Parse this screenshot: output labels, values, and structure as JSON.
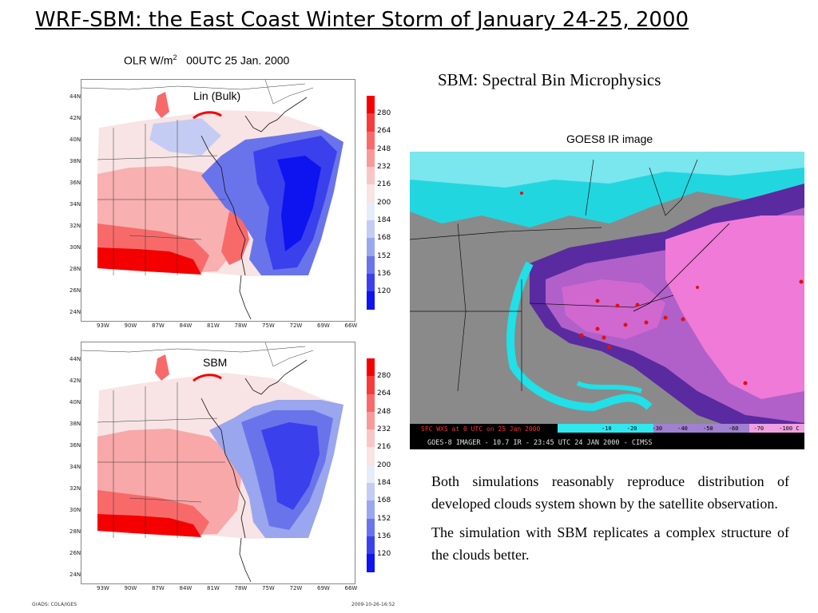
{
  "slide_title": "WRF-SBM: the East Coast Winter Storm of January 24-25, 2000",
  "olr_caption": {
    "prefix": "OLR W/m",
    "sup": "2",
    "time": "00UTC 25 Jan. 2000"
  },
  "panels": [
    {
      "label": "Lin (Bulk)"
    },
    {
      "label": "SBM"
    }
  ],
  "colorbar": {
    "ticks": [
      "280",
      "264",
      "248",
      "232",
      "216",
      "200",
      "184",
      "168",
      "152",
      "136",
      "120"
    ],
    "colors": [
      "#f40000",
      "#f83a3a",
      "#f86a6a",
      "#f89a9a",
      "#f8c6c6",
      "#f8e4e4",
      "#e6ecfa",
      "#c4ccf4",
      "#9aa6ee",
      "#6a74ea",
      "#3a40ec",
      "#0d14f0"
    ]
  },
  "map_axes": {
    "lat_labels": [
      "44N",
      "42N",
      "40N",
      "38N",
      "36N",
      "34N",
      "32N",
      "30N",
      "28N",
      "26N",
      "24N"
    ],
    "lon_labels": [
      "93W",
      "90W",
      "87W",
      "84W",
      "81W",
      "78W",
      "75W",
      "72W",
      "69W",
      "66W"
    ]
  },
  "sbm_heading": "SBM: Spectral Bin Microphysics",
  "goes_caption": "GOES8 IR image",
  "goes_overlay": {
    "sfc_label": "SFC WXS at 0 UTC on 25 Jan 2000",
    "scale_ticks": [
      "-10",
      "-20",
      "-30",
      "-40",
      "-50",
      "-60",
      "-70",
      "-100 C"
    ],
    "imager_label": "GOES-8 IMAGER - 10.7 IR - 23:45 UTC 24 JAN 2000 - CIMSS"
  },
  "description": [
    "Both simulations reasonably reproduce distribution of developed clouds system shown by the satellite observation.",
    "The simulation with SBM replicates a complex structure of the clouds better."
  ],
  "footer": {
    "left": "GrADS: COLA/IGES",
    "right": "2009-10-26-16:52"
  },
  "colors": {
    "warm": "#f40000",
    "cold": "#0d14f0",
    "goes_cyan": "#20e0e8",
    "goes_pink": "#f07ad8"
  }
}
